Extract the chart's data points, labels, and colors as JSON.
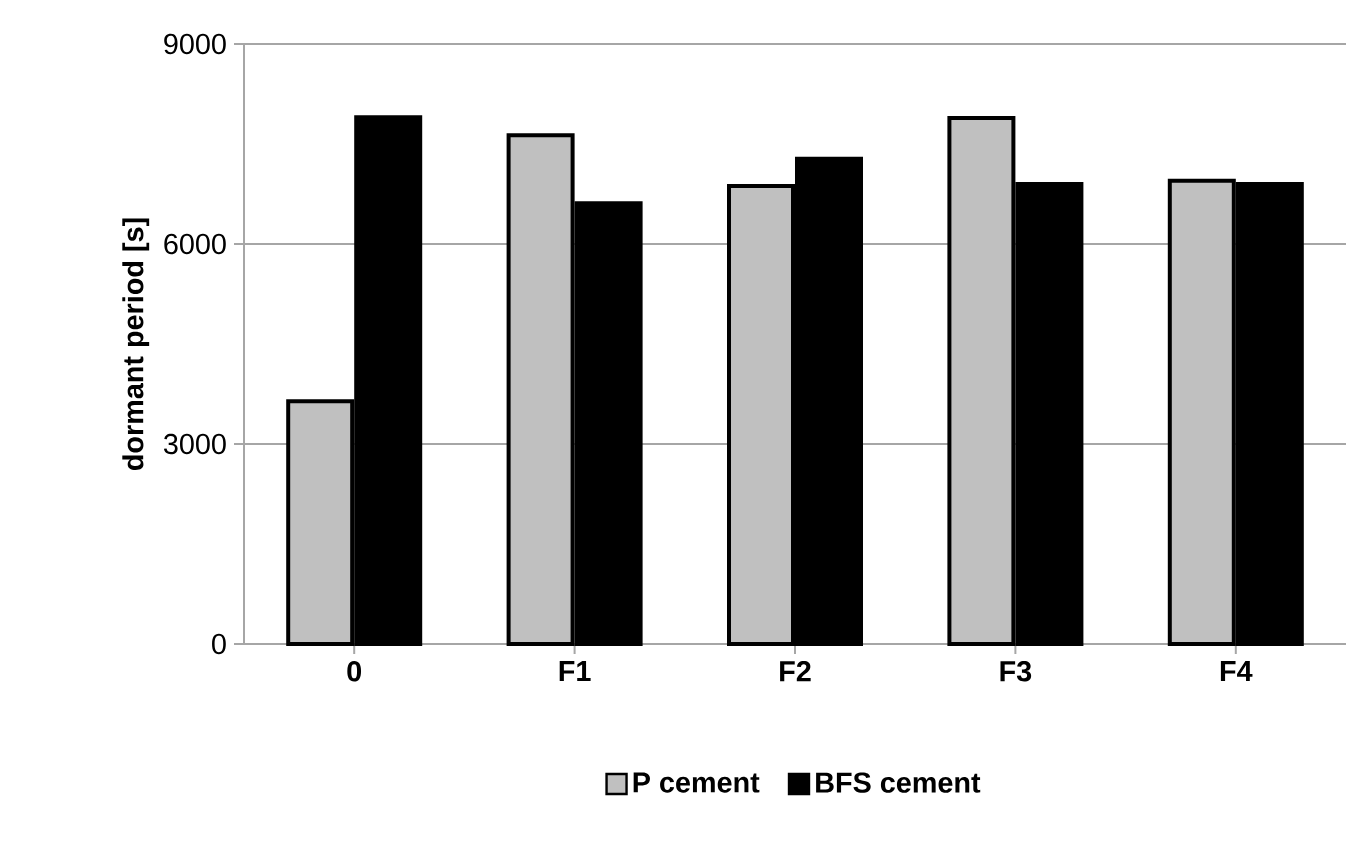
{
  "chart_data": {
    "type": "bar",
    "ylabel": "dormant period [s]",
    "categories": [
      "0",
      "F1",
      "F2",
      "F3",
      "F4"
    ],
    "series": [
      {
        "name": "P cement",
        "color": "#c0c0c0",
        "values": [
          3640,
          7630,
          6870,
          7890,
          6950
        ]
      },
      {
        "name": "BFS cement",
        "color": "#000000",
        "values": [
          7900,
          6610,
          7280,
          6900,
          6900
        ]
      }
    ],
    "ylim": [
      0,
      9000
    ],
    "yticks": [
      0,
      3000,
      6000,
      9000
    ],
    "grid": "y",
    "legend": "bottom"
  }
}
